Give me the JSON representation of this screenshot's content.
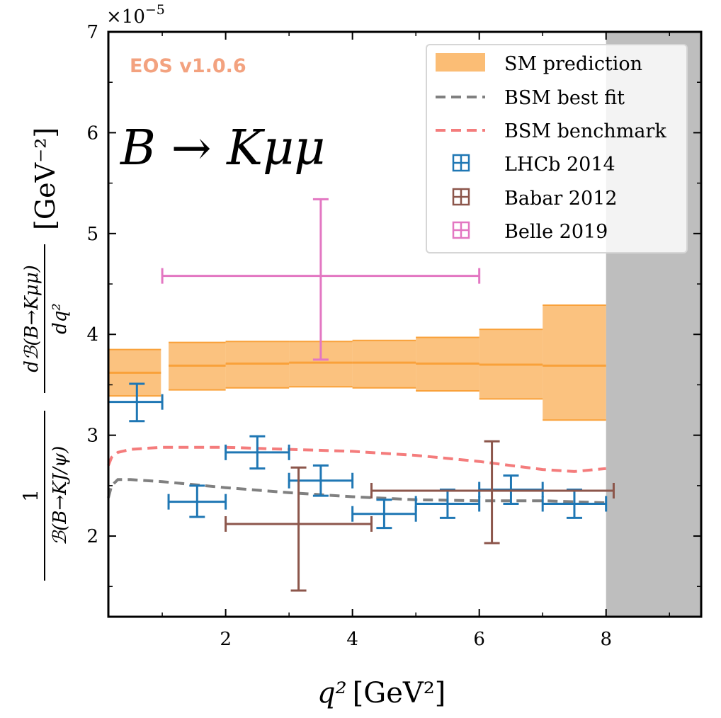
{
  "chart_data": {
    "type": "errorbar",
    "title": "B → Kμμ",
    "watermark": "EOS v1.0.6",
    "xlabel": "[GeV²]",
    "xlabel_symbol": "q²",
    "ylabel_dnum": "dℬ(B→Kμμ)",
    "ylabel_dden": "dq²",
    "ylabel_one": "1",
    "ylabel_den": "ℬ(B→KJ/ψ)",
    "ylabel_unit": "[GeV⁻²]",
    "y_offset_base": "×10",
    "y_offset_exp": "−5",
    "xlim": [
      0.15,
      9.5
    ],
    "ylim": [
      1.2,
      7.0
    ],
    "x_ticks": [
      2,
      4,
      6,
      8
    ],
    "x_tick_labels": [
      "2",
      "4",
      "6",
      "8"
    ],
    "y_ticks": [
      2,
      3,
      4,
      5,
      6,
      7
    ],
    "y_tick_labels": [
      "2",
      "3",
      "4",
      "5",
      "6",
      "7"
    ],
    "shaded_region": [
      8.0,
      9.5
    ],
    "sm_prediction": {
      "name": "SM prediction",
      "color": "#f9a13a",
      "bins": [
        {
          "x": [
            0.15,
            0.98
          ],
          "central": 3.62,
          "low": 3.39,
          "high": 3.85
        },
        {
          "x": [
            1.1,
            2.0
          ],
          "central": 3.69,
          "low": 3.45,
          "high": 3.92
        },
        {
          "x": [
            2.0,
            3.0
          ],
          "central": 3.71,
          "low": 3.47,
          "high": 3.93
        },
        {
          "x": [
            3.0,
            4.0
          ],
          "central": 3.72,
          "low": 3.48,
          "high": 3.93
        },
        {
          "x": [
            4.0,
            5.0
          ],
          "central": 3.72,
          "low": 3.47,
          "high": 3.94
        },
        {
          "x": [
            5.0,
            6.0
          ],
          "central": 3.71,
          "low": 3.44,
          "high": 3.97
        },
        {
          "x": [
            6.0,
            7.0
          ],
          "central": 3.7,
          "low": 3.36,
          "high": 4.05
        },
        {
          "x": [
            7.0,
            8.0
          ],
          "central": 3.69,
          "low": 3.15,
          "high": 4.29
        }
      ]
    },
    "bsm_best_fit": {
      "name": "BSM best fit",
      "color": "#808080",
      "x": [
        0.15,
        0.2,
        0.3,
        0.5,
        1.0,
        2.0,
        3.0,
        4.0,
        5.0,
        6.0,
        7.0,
        8.0
      ],
      "y": [
        2.38,
        2.5,
        2.56,
        2.56,
        2.54,
        2.48,
        2.43,
        2.39,
        2.36,
        2.35,
        2.35,
        2.33
      ]
    },
    "bsm_benchmark": {
      "name": "BSM benchmark",
      "color": "#f47c7c",
      "x": [
        0.15,
        0.2,
        0.3,
        0.5,
        1.0,
        1.5,
        2.0,
        3.0,
        4.0,
        5.0,
        6.0,
        7.0,
        7.5,
        8.0
      ],
      "y": [
        2.7,
        2.78,
        2.83,
        2.86,
        2.88,
        2.88,
        2.88,
        2.86,
        2.84,
        2.8,
        2.74,
        2.66,
        2.64,
        2.67
      ]
    },
    "series": [
      {
        "name": "LHCb 2014",
        "color": "#1f77b4",
        "points": [
          {
            "x": 0.6,
            "xerr": [
              0.15,
              1.0
            ],
            "y": 3.33,
            "yerr": [
              3.14,
              3.51
            ]
          },
          {
            "x": 1.55,
            "xerr": [
              1.1,
              2.0
            ],
            "y": 2.34,
            "yerr": [
              2.19,
              2.5
            ]
          },
          {
            "x": 2.5,
            "xerr": [
              2.0,
              3.0
            ],
            "y": 2.83,
            "yerr": [
              2.67,
              2.99
            ]
          },
          {
            "x": 3.5,
            "xerr": [
              3.0,
              4.0
            ],
            "y": 2.55,
            "yerr": [
              2.4,
              2.7
            ]
          },
          {
            "x": 4.5,
            "xerr": [
              4.0,
              5.0
            ],
            "y": 2.22,
            "yerr": [
              2.08,
              2.36
            ]
          },
          {
            "x": 5.5,
            "xerr": [
              5.0,
              6.0
            ],
            "y": 2.32,
            "yerr": [
              2.18,
              2.46
            ]
          },
          {
            "x": 6.5,
            "xerr": [
              6.0,
              7.0
            ],
            "y": 2.46,
            "yerr": [
              2.32,
              2.6
            ]
          },
          {
            "x": 7.5,
            "xerr": [
              7.0,
              8.0
            ],
            "y": 2.32,
            "yerr": [
              2.18,
              2.46
            ]
          }
        ]
      },
      {
        "name": "Babar 2012",
        "color": "#8c564b",
        "points": [
          {
            "x": 3.15,
            "xerr": [
              2.0,
              4.3
            ],
            "y": 2.12,
            "yerr": [
              1.46,
              2.68
            ]
          },
          {
            "x": 6.2,
            "xerr": [
              4.3,
              8.12
            ],
            "y": 2.45,
            "yerr": [
              1.93,
              2.94
            ]
          }
        ]
      },
      {
        "name": "Belle 2019",
        "color": "#e377c2",
        "points": [
          {
            "x": 3.5,
            "xerr": [
              1.0,
              6.0
            ],
            "y": 4.58,
            "yerr": [
              3.75,
              5.34
            ]
          }
        ]
      }
    ],
    "legend_position": "top-right"
  }
}
